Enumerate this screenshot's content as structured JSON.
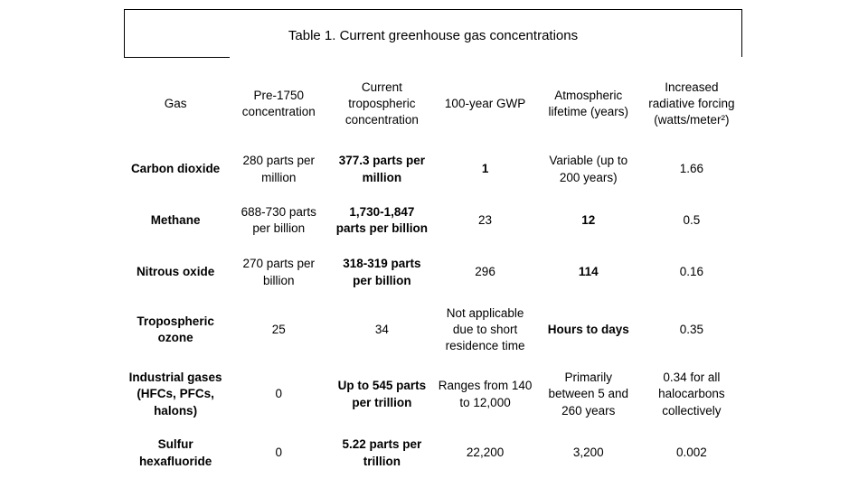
{
  "colors": {
    "text": "#000000",
    "background": "#ffffff",
    "border": "#000000"
  },
  "title": "Table 1. Current greenhouse gas concentrations",
  "table": {
    "headers": [
      "Gas",
      "Pre-1750 concentration",
      "Current tropospheric concentration",
      "100-year GWP",
      "Atmospheric lifetime (years)",
      "Increased radiative forcing (watts/meter²)"
    ],
    "rows": [
      {
        "gas": "Carbon dioxide",
        "pre1750": "280 parts per million",
        "current": "377.3 parts per million",
        "gwp": "1",
        "lifetime": "Variable (up to 200 years)",
        "forcing": "1.66"
      },
      {
        "gas": "Methane",
        "pre1750": "688-730 parts per billion",
        "current": "1,730-1,847 parts per billion",
        "gwp": "23",
        "lifetime": "12",
        "forcing": "0.5"
      },
      {
        "gas": "Nitrous oxide",
        "pre1750": "270 parts per billion",
        "current": "318-319 parts per billion",
        "gwp": "296",
        "lifetime": "114",
        "forcing": "0.16"
      },
      {
        "gas": "Tropospheric ozone",
        "pre1750": "25",
        "current": "34",
        "gwp": "Not applicable due to short residence time",
        "lifetime": "Hours to days",
        "forcing": "0.35"
      },
      {
        "gas": "Industrial gases (HFCs, PFCs, halons)",
        "pre1750": "0",
        "current": "Up to 545 parts per trillion",
        "gwp": "Ranges from 140 to 12,000",
        "lifetime": "Primarily between 5 and 260 years",
        "forcing": "0.34 for all halocarbons collectively"
      },
      {
        "gas": "Sulfur hexafluoride",
        "pre1750": "0",
        "current": "5.22 parts per trillion",
        "gwp": "22,200",
        "lifetime": "3,200",
        "forcing": "0.002"
      }
    ]
  }
}
